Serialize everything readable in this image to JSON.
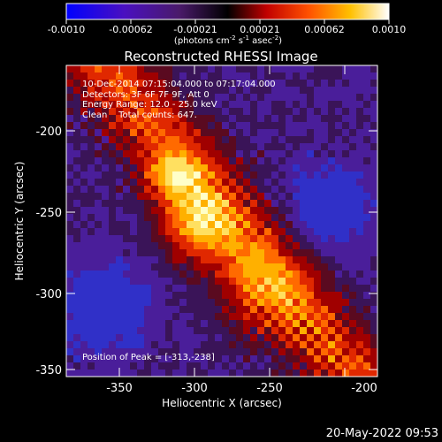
{
  "colorbar": {
    "tick_labels": [
      "-0.0010",
      "-0.00062",
      "-0.00021",
      "0.00021",
      "0.00062",
      "0.0010"
    ],
    "unit_label": "(photons cm",
    "unit_exp1": "-2",
    "unit_mid": " s",
    "unit_exp2": "-1",
    "unit_mid2": " asec",
    "unit_exp3": "-2",
    "unit_end": ")"
  },
  "title": "Reconstructed RHESSI Image",
  "annotations": {
    "line1": "10-Dec-2014 07:15:04.000 to 07:17:04.000",
    "line2": "Detectors: 3F 6F 7F 9F, Att 0",
    "line3": "Energy Range: 12.0 - 25.0 keV",
    "line4": "Clean    Total counts: 647.",
    "peak": "Position of Peak = [-313,-238]"
  },
  "axes": {
    "xlabel": "Heliocentric X (arcsec)",
    "ylabel": "Heliocentric Y (arcsec)",
    "x_ticks": [
      "-350",
      "-300",
      "-250",
      "-200"
    ],
    "y_ticks": [
      "-200",
      "-250",
      "-300",
      "-350"
    ]
  },
  "timestamp": "20-May-2022 09:53"
}
